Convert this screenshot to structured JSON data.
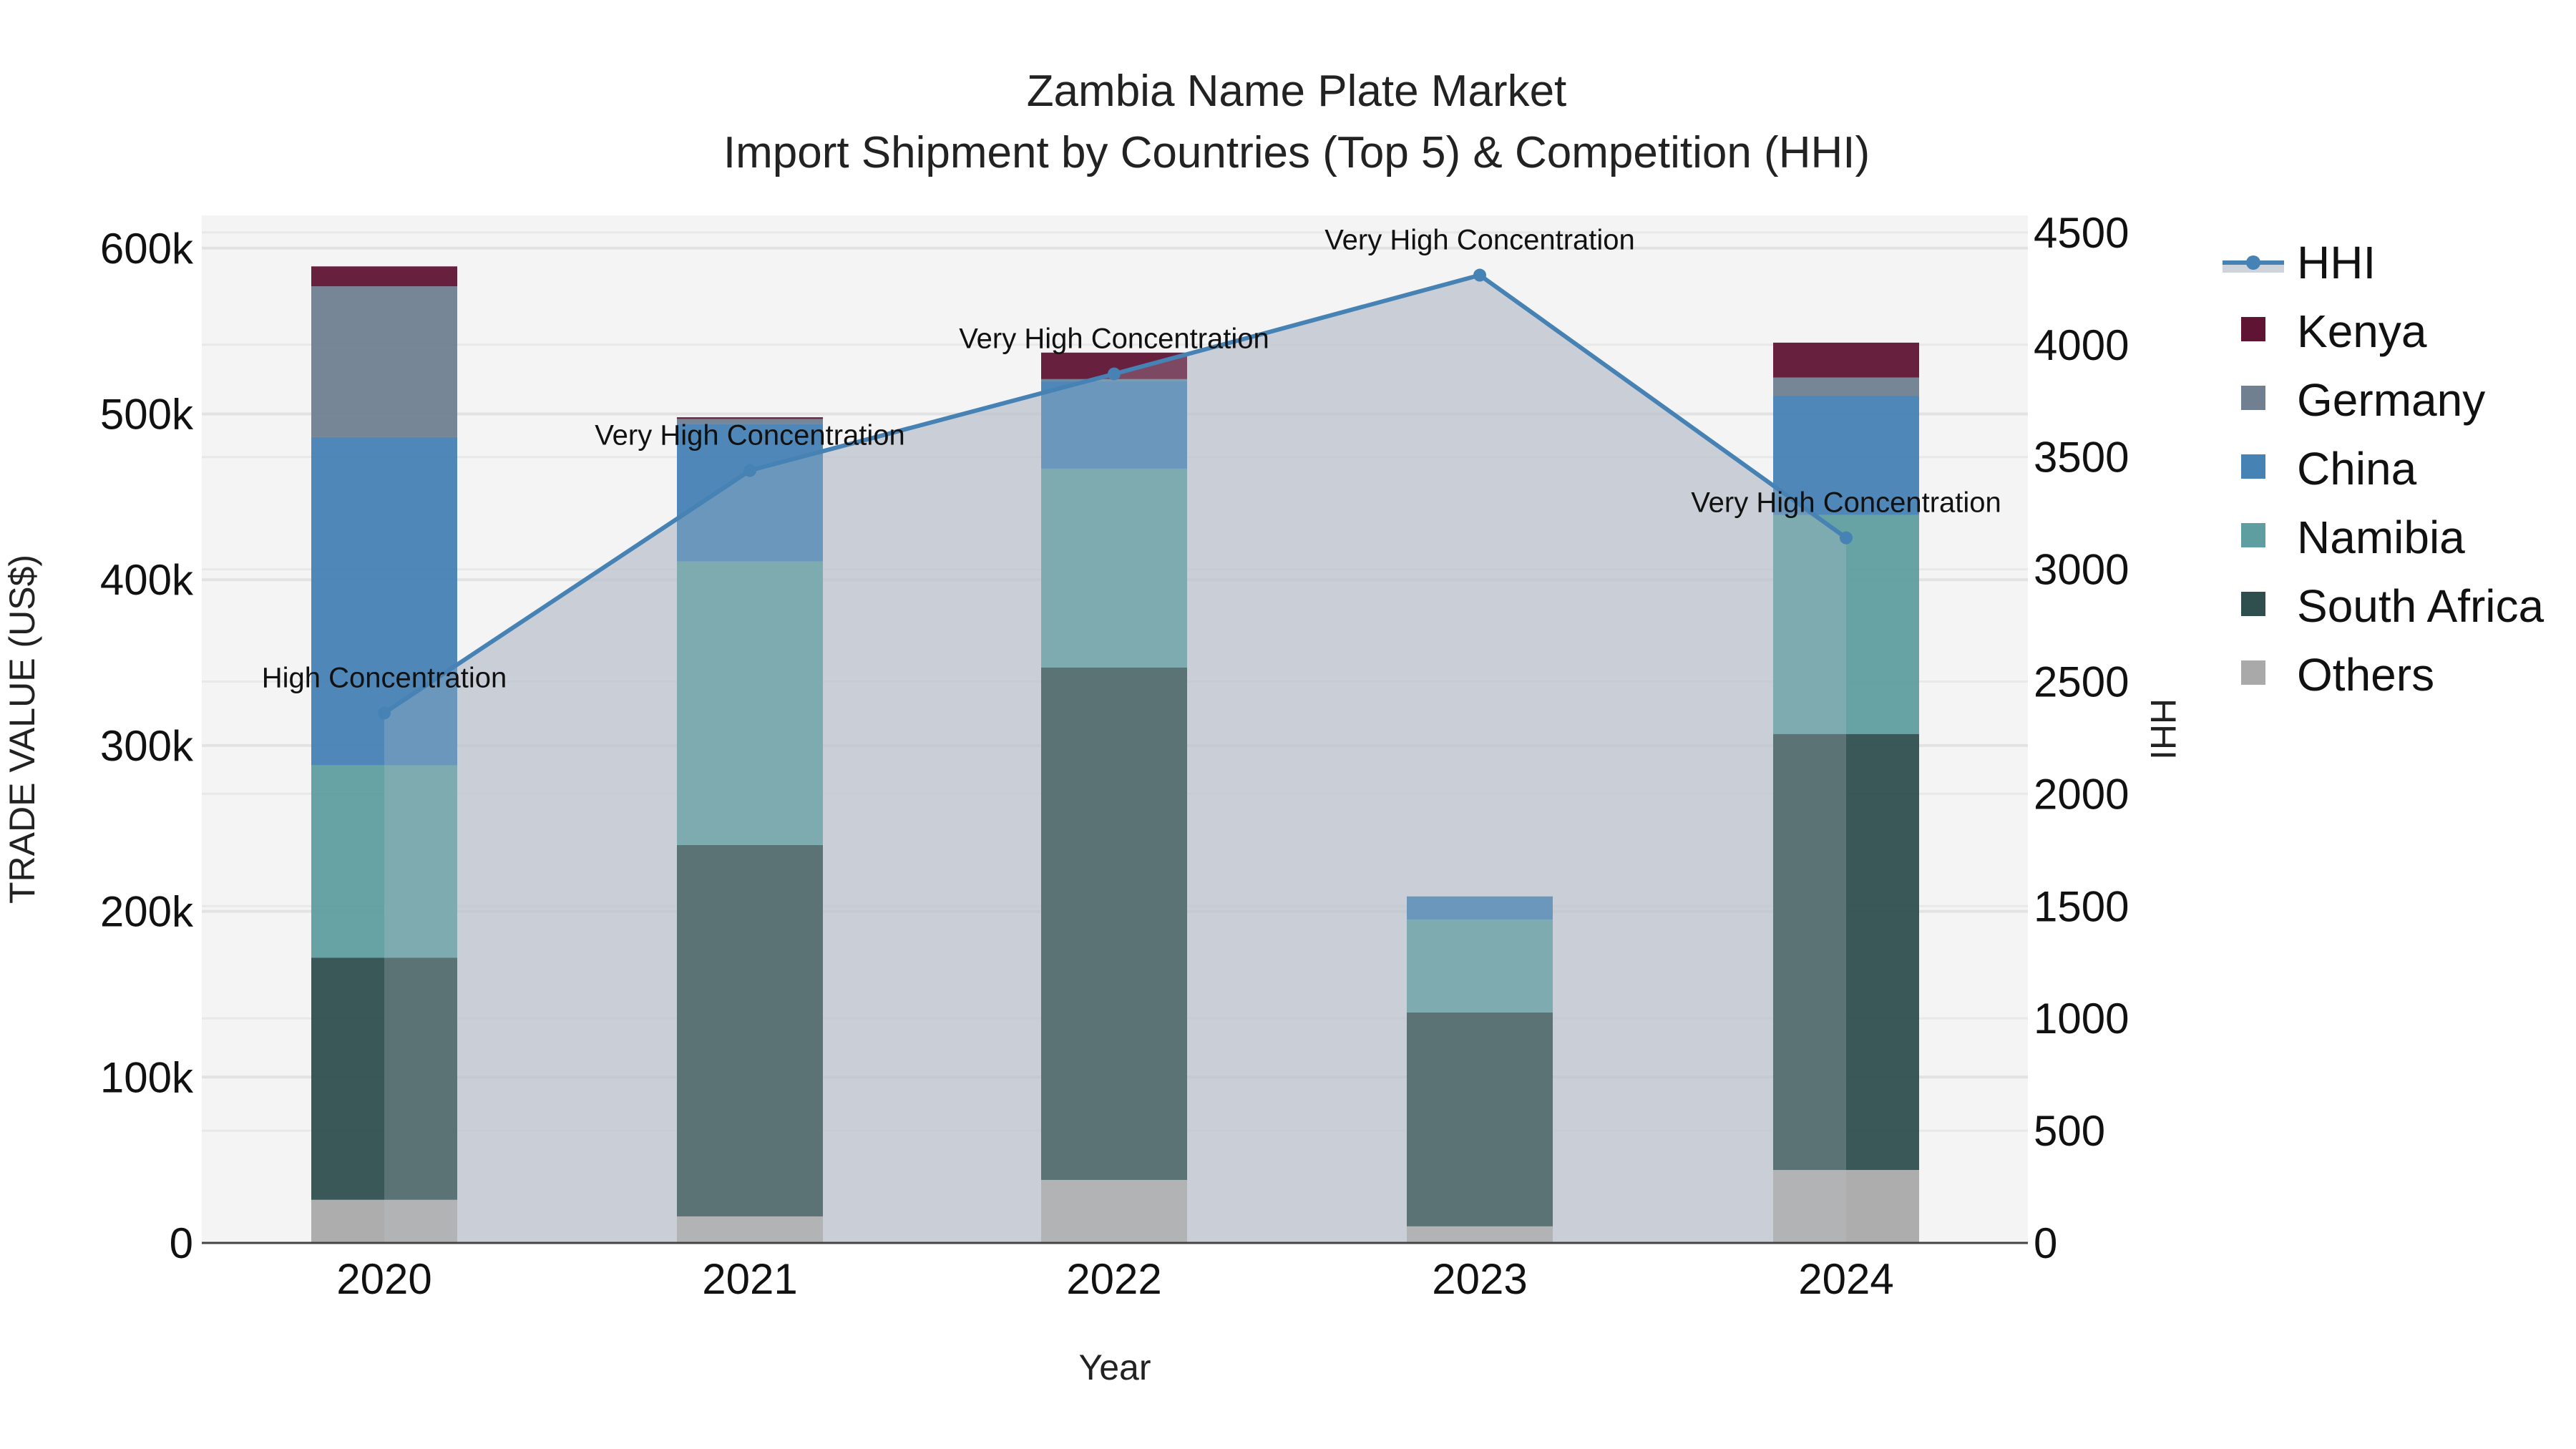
{
  "title": {
    "line1": "Zambia Name Plate Market",
    "line2": "Import Shipment by Countries (Top 5) & Competition (HHI)"
  },
  "axes": {
    "x_title": "Year",
    "y_left_title": "TRADE VALUE (US$)",
    "y_right_title": "HHI",
    "y_left_ticks": [
      "0",
      "100k",
      "200k",
      "300k",
      "400k",
      "500k",
      "600k"
    ],
    "y_right_ticks": [
      "0",
      "500",
      "1000",
      "1500",
      "2000",
      "2500",
      "3000",
      "3500",
      "4000",
      "4500"
    ],
    "x_ticks": [
      "2020",
      "2021",
      "2022",
      "2023",
      "2024"
    ]
  },
  "legend": {
    "items": [
      {
        "label": "HHI",
        "type": "line",
        "color": "#4682b4"
      },
      {
        "label": "Kenya",
        "type": "bar",
        "color": "#5f1434"
      },
      {
        "label": "Germany",
        "type": "bar",
        "color": "#708090"
      },
      {
        "label": "China",
        "type": "bar",
        "color": "#4682b4"
      },
      {
        "label": "Namibia",
        "type": "bar",
        "color": "#5f9ea0"
      },
      {
        "label": "South Africa",
        "type": "bar",
        "color": "#2f4f4f"
      },
      {
        "label": "Others",
        "type": "bar",
        "color": "#a9a9a9"
      }
    ]
  },
  "annotations": [
    {
      "year": "2020",
      "text": "High Concentration"
    },
    {
      "year": "2021",
      "text": "Very High Concentration"
    },
    {
      "year": "2022",
      "text": "Very High Concentration"
    },
    {
      "year": "2023",
      "text": "Very High Concentration"
    },
    {
      "year": "2024",
      "text": "Very High Concentration"
    }
  ],
  "colors": {
    "plot_bg": "#f4f4f4",
    "grid": "#e2e2e2",
    "hhi_line": "#4682b4",
    "hhi_fill": "#c8cdd5"
  },
  "chart_data": {
    "type": "bar",
    "title": "Zambia Name Plate Market - Import Shipment by Countries (Top 5) & Competition (HHI)",
    "xlabel": "Year",
    "ylabel": "TRADE VALUE (US$)",
    "y2label": "HHI",
    "ylim": [
      0,
      620000
    ],
    "y2lim": [
      0,
      4580
    ],
    "stacked": true,
    "grid": true,
    "legend_position": "right",
    "categories": [
      "2020",
      "2021",
      "2022",
      "2023",
      "2024"
    ],
    "series": [
      {
        "name": "Others",
        "type": "bar",
        "color": "#a9a9a9",
        "values": [
          26000,
          16000,
          38000,
          10000,
          44000
        ]
      },
      {
        "name": "South Africa",
        "type": "bar",
        "color": "#2f4f4f",
        "values": [
          146000,
          224000,
          309000,
          129000,
          263000
        ]
      },
      {
        "name": "Namibia",
        "type": "bar",
        "color": "#5f9ea0",
        "values": [
          116000,
          171000,
          120000,
          56000,
          132000
        ]
      },
      {
        "name": "China",
        "type": "bar",
        "color": "#4682b4",
        "values": [
          198000,
          83000,
          53000,
          14000,
          72000
        ]
      },
      {
        "name": "Germany",
        "type": "bar",
        "color": "#708090",
        "values": [
          91000,
          3000,
          1000,
          0,
          11000
        ]
      },
      {
        "name": "Kenya",
        "type": "bar",
        "color": "#5f1434",
        "values": [
          12000,
          1000,
          16000,
          0,
          21000
        ]
      },
      {
        "name": "HHI",
        "type": "area-line",
        "axis": "right",
        "color": "#4682b4",
        "values": [
          2360,
          3440,
          3870,
          4310,
          3140
        ]
      }
    ],
    "annotations": [
      "High Concentration",
      "Very High Concentration",
      "Very High Concentration",
      "Very High Concentration",
      "Very High Concentration"
    ]
  }
}
